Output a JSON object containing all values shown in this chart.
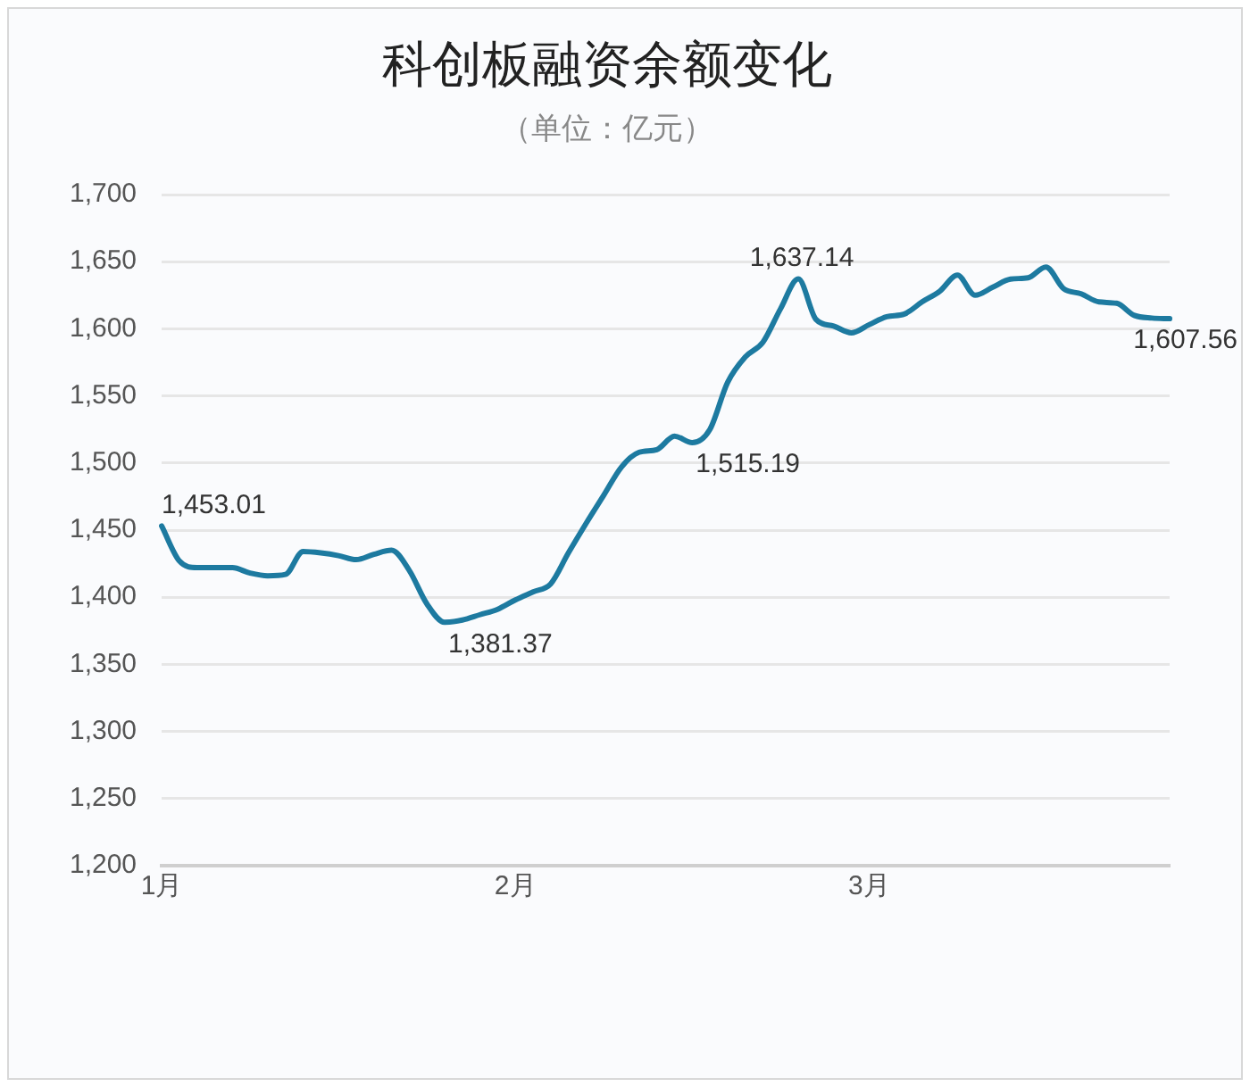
{
  "chart_data": {
    "type": "line",
    "title": "科创板融资余额变化",
    "subtitle": "（单位：亿元）",
    "categories": [
      "1月",
      null,
      null,
      null,
      null,
      null,
      null,
      null,
      null,
      null,
      null,
      null,
      null,
      null,
      null,
      null,
      null,
      null,
      null,
      null,
      "2月",
      null,
      null,
      null,
      null,
      null,
      null,
      null,
      null,
      null,
      null,
      null,
      null,
      null,
      null,
      null,
      null,
      null,
      null,
      null,
      "3月",
      null,
      null,
      null,
      null,
      null,
      null,
      null,
      null,
      null,
      null,
      null,
      null,
      null,
      null,
      null,
      null,
      null
    ],
    "series": [
      {
        "color": "#1d7aa0",
        "values": [
          1453.01,
          1427,
          1422,
          1422,
          1422,
          1418,
          1416,
          1417,
          1434,
          1433,
          1431,
          1428,
          1432,
          1435,
          1420,
          1395,
          1381.37,
          1383,
          1387,
          1391,
          1398,
          1404,
          1410,
          1433,
          1455,
          1476,
          1497,
          1508,
          1510,
          1520,
          1515.19,
          1525,
          1560,
          1579,
          1590,
          1615,
          1637.14,
          1607,
          1602,
          1597,
          1603,
          1609,
          1611,
          1620,
          1628,
          1640,
          1625,
          1631,
          1637,
          1638,
          1646,
          1630,
          1626,
          1620,
          1619,
          1610,
          1608,
          1607.56
        ],
        "value_labels": [
          "1,453.01",
          null,
          null,
          null,
          null,
          null,
          null,
          null,
          null,
          null,
          null,
          null,
          null,
          null,
          null,
          null,
          "1,381.37",
          null,
          null,
          null,
          null,
          null,
          null,
          null,
          null,
          null,
          null,
          null,
          null,
          null,
          "1,515.19",
          null,
          null,
          null,
          null,
          null,
          "1,637.14",
          null,
          null,
          null,
          null,
          null,
          null,
          null,
          null,
          null,
          null,
          null,
          null,
          null,
          null,
          null,
          null,
          null,
          null,
          null,
          null,
          "1,607.56"
        ]
      }
    ],
    "ylim": [
      1200,
      1700
    ],
    "yticks": [
      {
        "value": 1200,
        "label": "1,200"
      },
      {
        "value": 1250,
        "label": "1,250"
      },
      {
        "value": 1300,
        "label": "1,300"
      },
      {
        "value": 1350,
        "label": "1,350"
      },
      {
        "value": 1400,
        "label": "1,400"
      },
      {
        "value": 1450,
        "label": "1,450"
      },
      {
        "value": 1500,
        "label": "1,500"
      },
      {
        "value": 1550,
        "label": "1,550"
      },
      {
        "value": 1600,
        "label": "1,600"
      },
      {
        "value": 1650,
        "label": "1,650"
      },
      {
        "value": 1700,
        "label": "1,700"
      }
    ],
    "grid": "y",
    "legend": false,
    "line_style": "solid",
    "marker": "none"
  }
}
